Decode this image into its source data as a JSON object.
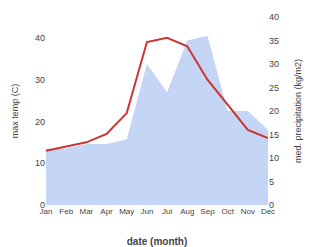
{
  "chart_data": {
    "type": "line",
    "categories": [
      "Jan",
      "Feb",
      "Mar",
      "Apr",
      "May",
      "Jun",
      "Jul",
      "Aug",
      "Sep",
      "Oct",
      "Nov",
      "Dec"
    ],
    "series": [
      {
        "type": "area",
        "color": "#c5d5f5",
        "axis": "y2",
        "values": [
          12,
          12,
          13,
          13,
          14,
          30,
          24,
          35,
          36,
          20,
          20,
          16
        ]
      },
      {
        "type": "line",
        "color": "#cc3333",
        "values": [
          13,
          14,
          15,
          17,
          22,
          39,
          40,
          38,
          30,
          24,
          18,
          16
        ]
      }
    ],
    "xlabel": "date (month)",
    "ylabel": "max temp (C)",
    "y2label": "med. precipitation (kg/m2)",
    "ylim": [
      0,
      45
    ],
    "yticks": [
      0,
      10,
      20,
      30,
      40
    ],
    "y2lim": [
      0,
      40
    ],
    "y2ticks": [
      0,
      5,
      10,
      15,
      20,
      25,
      30,
      35,
      40
    ],
    "grid": false
  }
}
